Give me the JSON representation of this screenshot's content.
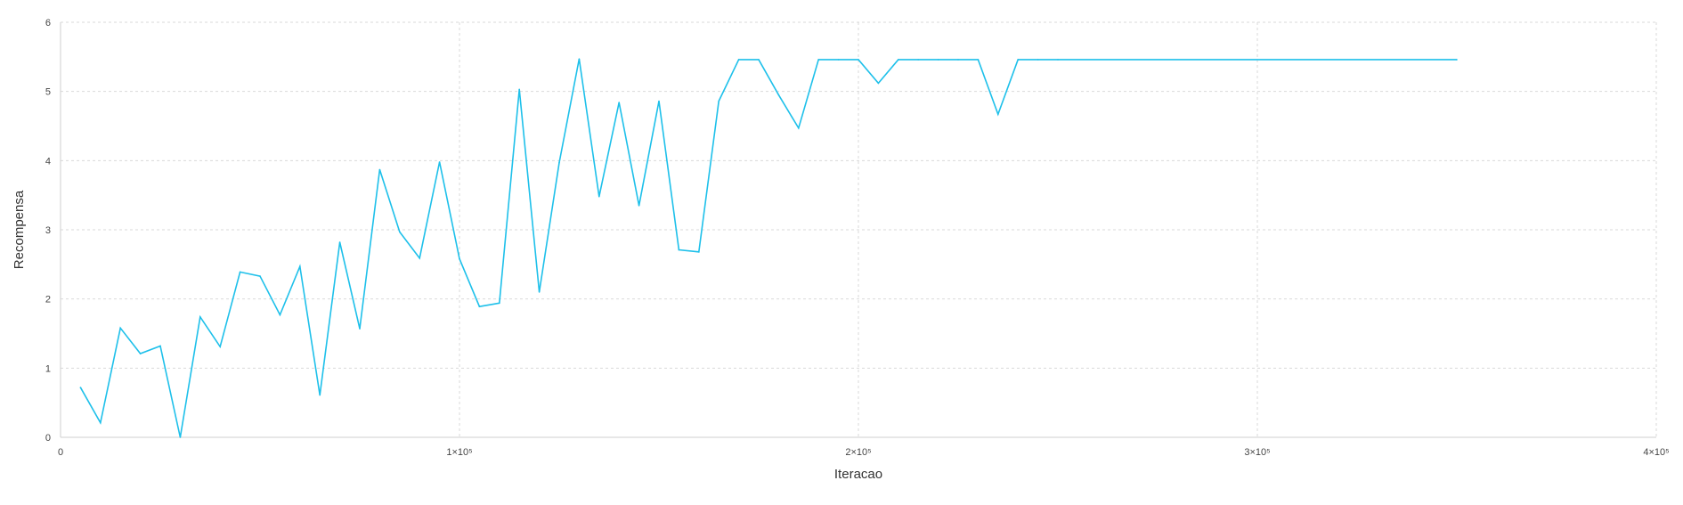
{
  "chart_data": {
    "type": "line",
    "title": "",
    "xlabel": "Iteracao",
    "ylabel": "Recompensa",
    "xlim": [
      0,
      400000
    ],
    "ylim": [
      0,
      6
    ],
    "grid": true,
    "legend": "none",
    "x_tick_labels": [
      {
        "value": 0,
        "label": "0"
      },
      {
        "value": 100000,
        "label": "1×10⁵"
      },
      {
        "value": 200000,
        "label": "2×10⁵"
      },
      {
        "value": 300000,
        "label": "3×10⁵"
      },
      {
        "value": 400000,
        "label": "4×10⁵"
      }
    ],
    "y_tick_labels": [
      {
        "value": 0,
        "label": "0"
      },
      {
        "value": 1,
        "label": "1"
      },
      {
        "value": 2,
        "label": "2"
      },
      {
        "value": 3,
        "label": "3"
      },
      {
        "value": 4,
        "label": "4"
      },
      {
        "value": 5,
        "label": "5"
      },
      {
        "value": 6,
        "label": "6"
      }
    ],
    "series": [
      {
        "color": "#1ec0ea",
        "x": [
          5000,
          10000,
          15000,
          20000,
          25000,
          30000,
          35000,
          40000,
          45000,
          50000,
          55000,
          60000,
          65000,
          70000,
          75000,
          80000,
          85000,
          90000,
          95000,
          100000,
          105000,
          110000,
          115000,
          120000,
          125000,
          130000,
          135000,
          140000,
          145000,
          150000,
          155000,
          160000,
          165000,
          170000,
          175000,
          180000,
          185000,
          190000,
          195000,
          200000,
          205000,
          210000,
          215000,
          220000,
          225000,
          230000,
          235000,
          240000,
          245000,
          250000,
          350000
        ],
        "y": [
          0.72,
          0.21,
          1.58,
          1.21,
          1.32,
          0.0,
          1.74,
          1.31,
          2.39,
          2.33,
          1.77,
          2.47,
          0.61,
          2.82,
          1.57,
          3.87,
          2.97,
          2.59,
          3.98,
          2.58,
          1.89,
          1.94,
          5.03,
          2.1,
          3.97,
          5.47,
          3.48,
          4.84,
          3.35,
          4.86,
          2.71,
          2.68,
          4.86,
          5.46,
          5.46,
          4.95,
          4.47,
          5.46,
          5.46,
          5.46,
          5.12,
          5.46,
          5.46,
          5.46,
          5.46,
          5.46,
          4.67,
          5.46,
          5.46,
          5.46,
          5.46
        ]
      }
    ]
  }
}
